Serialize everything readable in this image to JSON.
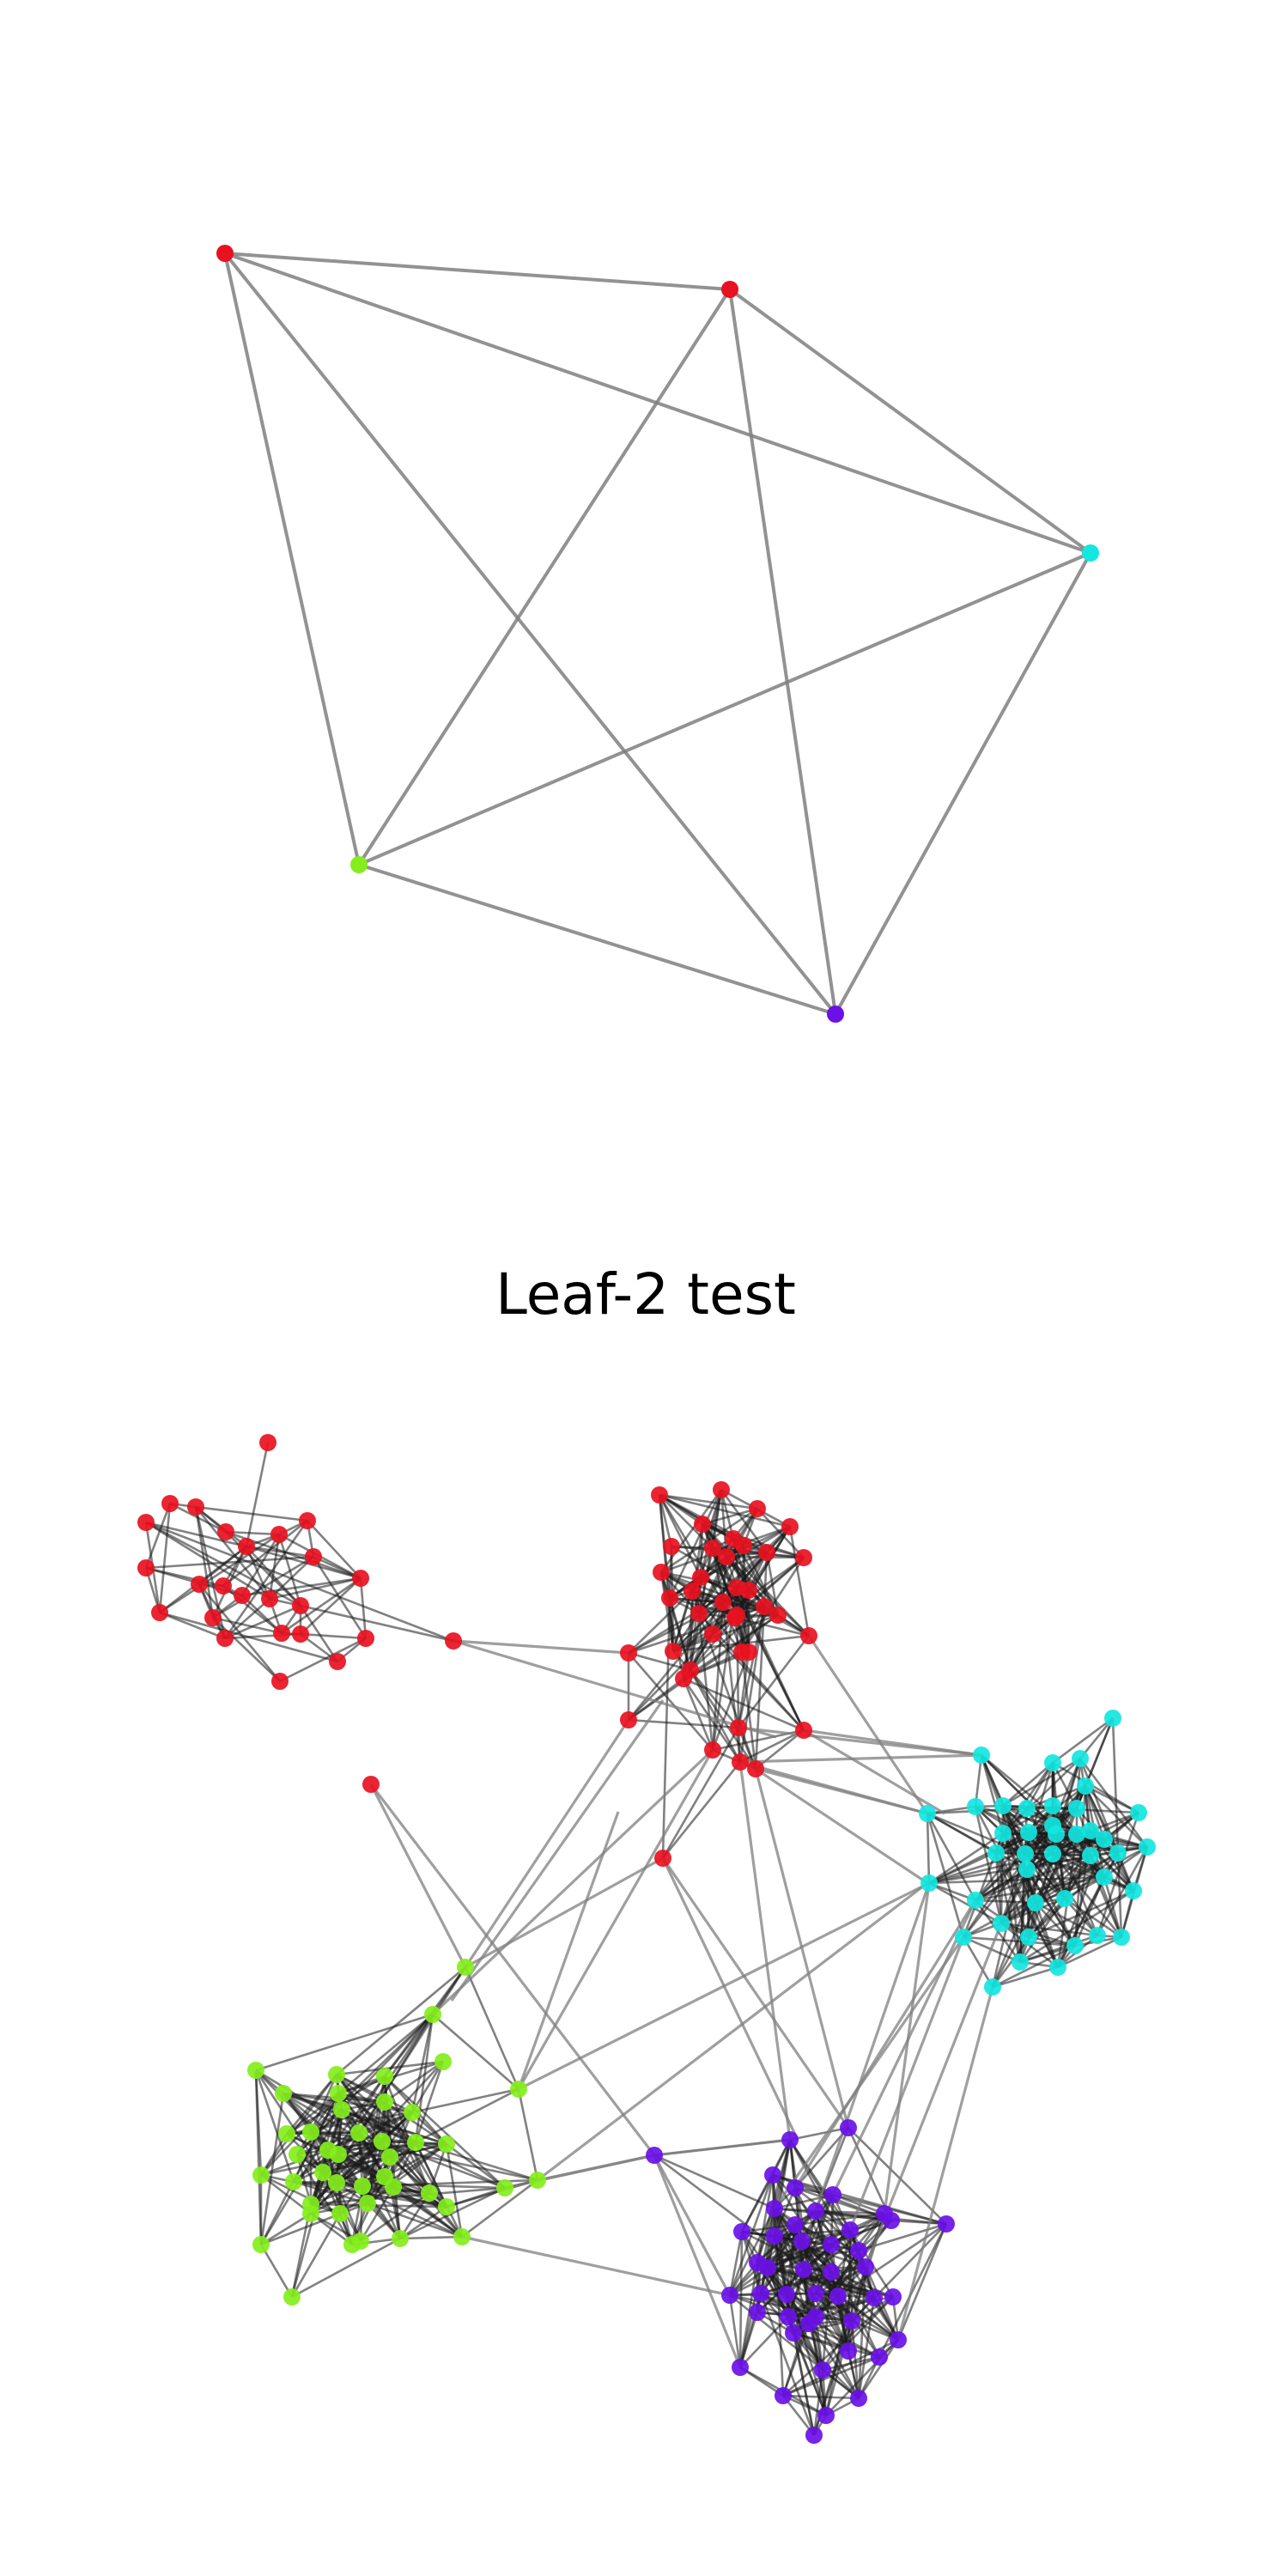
{
  "bottom_title": "Leaf-2 test",
  "colors": {
    "red": "#e8111f",
    "cyan": "#14e6e0",
    "green": "#84ee1c",
    "purple": "#6a10e8",
    "edge_light": "#7f7f7f",
    "edge_dark": "#1a1a1a"
  }
}
